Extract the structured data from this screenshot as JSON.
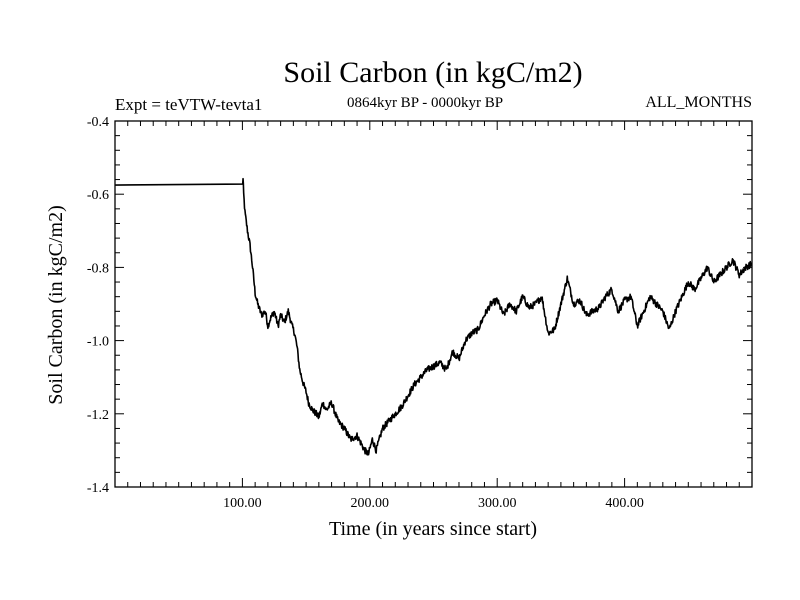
{
  "chart_data": {
    "type": "line",
    "title": "Soil Carbon (in kgC/m2)",
    "subtitle_left": "Expt = teVTW-tevta1",
    "subtitle_center": "0864kyr BP - 0000kyr BP",
    "subtitle_right": "ALL_MONTHS",
    "xlabel": "Time (in years since start)",
    "ylabel": "Soil Carbon (in kgC/m2)",
    "xlim": [
      0,
      500
    ],
    "ylim": [
      -1.4,
      -0.4
    ],
    "x_ticks": [
      100,
      200,
      300,
      400
    ],
    "x_tick_labels": [
      "100.00",
      "200.00",
      "300.00",
      "400.00"
    ],
    "y_ticks": [
      -1.4,
      -1.2,
      -1.0,
      -0.8,
      -0.6,
      -0.4
    ],
    "y_tick_labels": [
      "-1.4",
      "-1.2",
      "-1.0",
      "-0.8",
      "-0.6",
      "-0.4"
    ],
    "grid": false,
    "series": [
      {
        "name": "Soil Carbon",
        "color": "#000000",
        "x": [
          0,
          100,
          100.5,
          101,
          102,
          104,
          106,
          108,
          110,
          112,
          115,
          118,
          120,
          122,
          125,
          128,
          130,
          133,
          136,
          139,
          141,
          143,
          145,
          148,
          150,
          152,
          155,
          158,
          160,
          163,
          166,
          170,
          175,
          180,
          185,
          190,
          193,
          196,
          199,
          202,
          205,
          210,
          215,
          220,
          225,
          230,
          235,
          240,
          245,
          250,
          255,
          260,
          265,
          270,
          275,
          280,
          285,
          290,
          295,
          300,
          305,
          310,
          315,
          320,
          325,
          330,
          335,
          340,
          345,
          350,
          355,
          360,
          365,
          370,
          375,
          380,
          385,
          390,
          395,
          400,
          405,
          410,
          415,
          420,
          425,
          430,
          435,
          440,
          445,
          450,
          455,
          460,
          465,
          470,
          475,
          480,
          485,
          490,
          495,
          500
        ],
        "y": [
          -0.575,
          -0.575,
          -0.56,
          -0.6,
          -0.65,
          -0.7,
          -0.74,
          -0.8,
          -0.87,
          -0.9,
          -0.93,
          -0.92,
          -0.96,
          -0.94,
          -0.92,
          -0.96,
          -0.93,
          -0.95,
          -0.92,
          -0.96,
          -0.98,
          -1.02,
          -1.08,
          -1.12,
          -1.14,
          -1.17,
          -1.19,
          -1.2,
          -1.21,
          -1.17,
          -1.19,
          -1.17,
          -1.22,
          -1.24,
          -1.27,
          -1.26,
          -1.28,
          -1.3,
          -1.31,
          -1.27,
          -1.3,
          -1.24,
          -1.22,
          -1.2,
          -1.18,
          -1.15,
          -1.12,
          -1.1,
          -1.08,
          -1.07,
          -1.06,
          -1.08,
          -1.03,
          -1.05,
          -1.0,
          -0.98,
          -0.97,
          -0.93,
          -0.9,
          -0.89,
          -0.93,
          -0.9,
          -0.92,
          -0.88,
          -0.91,
          -0.9,
          -0.88,
          -0.98,
          -0.97,
          -0.9,
          -0.83,
          -0.9,
          -0.89,
          -0.93,
          -0.92,
          -0.91,
          -0.88,
          -0.86,
          -0.92,
          -0.89,
          -0.88,
          -0.96,
          -0.92,
          -0.88,
          -0.9,
          -0.92,
          -0.97,
          -0.92,
          -0.88,
          -0.84,
          -0.86,
          -0.83,
          -0.8,
          -0.84,
          -0.82,
          -0.8,
          -0.78,
          -0.82,
          -0.8,
          -0.79
        ]
      }
    ]
  }
}
